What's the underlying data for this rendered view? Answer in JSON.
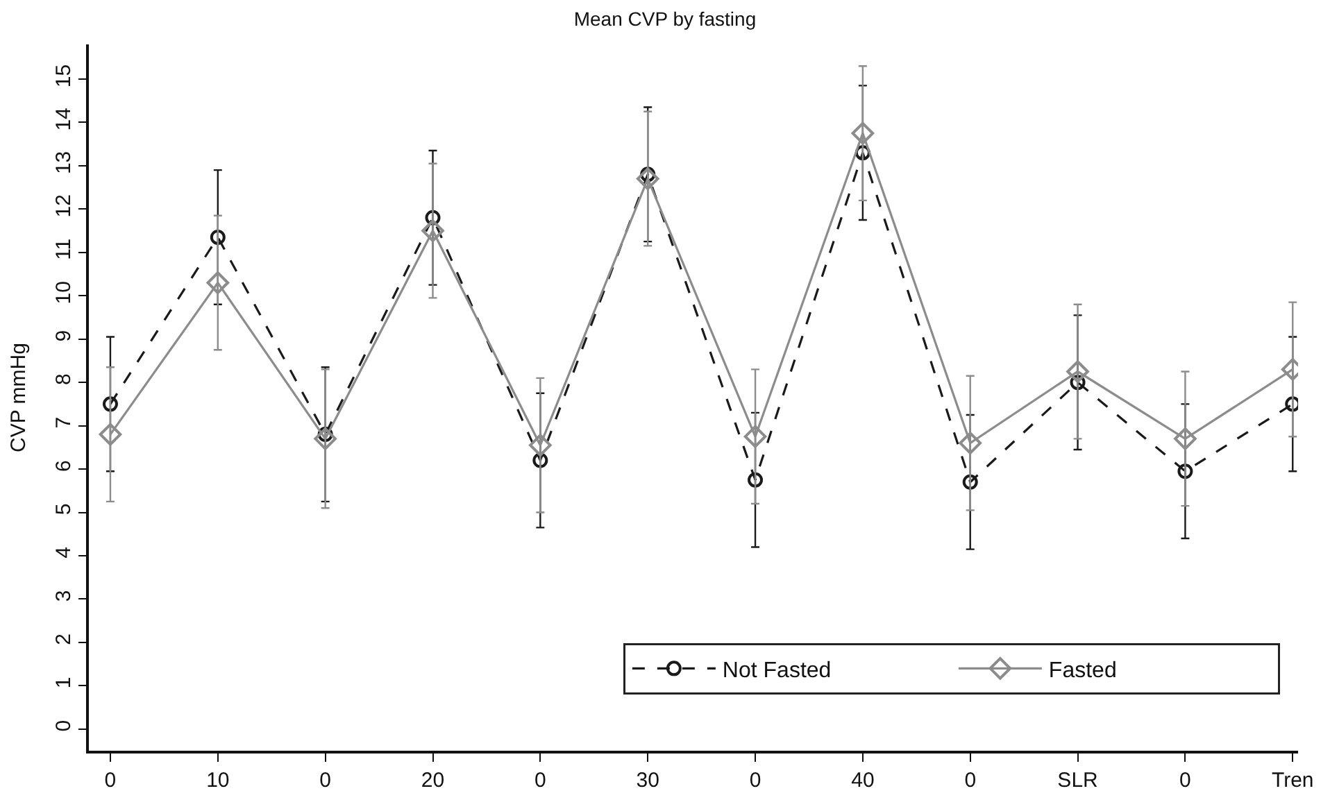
{
  "chart_data": {
    "type": "line",
    "title": "Mean CVP by fasting",
    "ylabel": "CVP mmHg",
    "categories": [
      "0",
      "10",
      "0",
      "20",
      "0",
      "30",
      "0",
      "40",
      "0",
      "SLR",
      "0",
      "Tren"
    ],
    "ylim": [
      -0.5,
      15.8
    ],
    "yticks": [
      0,
      1,
      2,
      3,
      4,
      5,
      6,
      7,
      8,
      9,
      10,
      11,
      12,
      13,
      14,
      15
    ],
    "legend": "bottom right",
    "series": [
      {
        "name": "Not Fasted",
        "color": "#1a1a1a",
        "marker": "circle",
        "line_style": "dashed",
        "values": [
          7.5,
          11.35,
          6.8,
          11.8,
          6.2,
          12.8,
          5.75,
          13.3,
          5.7,
          8.0,
          5.95,
          7.5
        ],
        "errors": [
          1.55,
          1.55,
          1.55,
          1.55,
          1.55,
          1.55,
          1.55,
          1.55,
          1.55,
          1.55,
          1.55,
          1.55
        ]
      },
      {
        "name": "Fasted",
        "color": "#8c8c8c",
        "marker": "diamond",
        "line_style": "solid",
        "values": [
          6.8,
          10.3,
          6.7,
          11.5,
          6.55,
          12.7,
          6.75,
          13.75,
          6.6,
          8.25,
          6.7,
          8.3
        ],
        "errors": [
          1.55,
          1.55,
          [
            5.1,
            8.3
          ],
          1.55,
          1.55,
          1.55,
          1.55,
          1.55,
          1.55,
          1.55,
          1.55,
          1.55
        ]
      }
    ]
  }
}
